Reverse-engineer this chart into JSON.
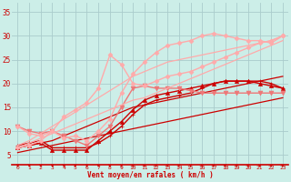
{
  "bg_color": "#cceee8",
  "grid_color": "#aacccc",
  "line_color_dark": "#cc0000",
  "xlabel": "Vent moyen/en rafales ( km/h )",
  "ylabel_ticks": [
    5,
    10,
    15,
    20,
    25,
    30,
    35
  ],
  "xlim": [
    -0.5,
    23.5
  ],
  "ylim": [
    3,
    37
  ],
  "series": [
    {
      "x": [
        0,
        1,
        2,
        3,
        4,
        5,
        6,
        7,
        8,
        9,
        10,
        11,
        12,
        13,
        14,
        15,
        16,
        17,
        18,
        19,
        20,
        21,
        22,
        23
      ],
      "y": [
        5.5,
        6.0,
        6.5,
        7.0,
        7.5,
        8.0,
        8.5,
        9.0,
        9.5,
        10.0,
        10.5,
        11.0,
        11.5,
        12.0,
        12.5,
        13.0,
        13.5,
        14.0,
        14.5,
        15.0,
        15.5,
        16.0,
        16.5,
        17.0
      ],
      "color": "#cc0000",
      "lw": 0.9,
      "marker": null,
      "ms": 0
    },
    {
      "x": [
        0,
        1,
        2,
        3,
        4,
        5,
        6,
        7,
        8,
        9,
        10,
        11,
        12,
        13,
        14,
        15,
        16,
        17,
        18,
        19,
        20,
        21,
        22,
        23
      ],
      "y": [
        7.0,
        7.5,
        8.0,
        6.5,
        6.5,
        6.5,
        6.5,
        7.5,
        9.0,
        11.0,
        13.5,
        15.5,
        16.5,
        17.0,
        17.5,
        18.0,
        19.0,
        20.0,
        20.5,
        20.5,
        20.5,
        20.5,
        20.0,
        19.0
      ],
      "color": "#cc0000",
      "lw": 1.0,
      "marker": "+",
      "ms": 3.5
    },
    {
      "x": [
        0,
        1,
        2,
        3,
        4,
        5,
        6,
        7,
        8,
        9,
        10,
        11,
        12,
        13,
        14,
        15,
        16,
        17,
        18,
        19,
        20,
        21,
        22,
        23
      ],
      "y": [
        6.5,
        7.0,
        7.5,
        6.0,
        6.0,
        6.0,
        6.0,
        8.0,
        10.0,
        12.0,
        14.5,
        16.5,
        17.5,
        18.0,
        18.5,
        19.0,
        19.5,
        20.0,
        20.5,
        20.5,
        20.5,
        20.0,
        19.5,
        19.0
      ],
      "color": "#cc0000",
      "lw": 1.0,
      "marker": "^",
      "ms": 3
    },
    {
      "x": [
        0,
        1,
        2,
        3,
        4,
        5,
        6,
        7,
        8,
        9,
        10,
        11,
        12,
        13,
        14,
        15,
        16,
        17,
        18,
        19,
        20,
        21,
        22,
        23
      ],
      "y": [
        6.5,
        7.0,
        7.5,
        8.0,
        9.0,
        10.0,
        11.0,
        12.0,
        13.0,
        14.0,
        15.0,
        15.5,
        16.0,
        16.5,
        17.0,
        17.5,
        18.0,
        18.5,
        19.0,
        19.5,
        20.0,
        20.5,
        21.0,
        21.5
      ],
      "color": "#cc0000",
      "lw": 0.9,
      "marker": null,
      "ms": 0
    },
    {
      "x": [
        0,
        1,
        2,
        3,
        4,
        5,
        6,
        7,
        8,
        9,
        10,
        11,
        12,
        13,
        14,
        15,
        16,
        17,
        18,
        19,
        20,
        21,
        22,
        23
      ],
      "y": [
        11.0,
        10.0,
        9.5,
        10.0,
        9.0,
        8.0,
        7.0,
        9.0,
        11.0,
        15.0,
        19.0,
        19.5,
        19.0,
        19.0,
        19.0,
        18.5,
        18.0,
        18.0,
        18.0,
        18.0,
        18.0,
        18.0,
        18.0,
        18.0
      ],
      "color": "#ee7777",
      "lw": 1.0,
      "marker": "v",
      "ms": 3.5
    },
    {
      "x": [
        0,
        1,
        2,
        3,
        4,
        5,
        6,
        7,
        8,
        9,
        10,
        11,
        12,
        13,
        14,
        15,
        16,
        17,
        18,
        19,
        20,
        21,
        22,
        23
      ],
      "y": [
        11.0,
        9.5,
        9.0,
        10.0,
        8.5,
        9.0,
        8.0,
        10.0,
        12.5,
        18.0,
        22.0,
        24.5,
        26.5,
        28.0,
        28.5,
        29.0,
        30.0,
        30.5,
        30.0,
        29.5,
        29.0,
        29.0,
        28.5,
        30.0
      ],
      "color": "#ffaaaa",
      "lw": 1.0,
      "marker": "D",
      "ms": 2.5
    },
    {
      "x": [
        0,
        1,
        2,
        3,
        4,
        5,
        6,
        7,
        8,
        9,
        10,
        11,
        12,
        13,
        14,
        15,
        16,
        17,
        18,
        19,
        20,
        21,
        22,
        23
      ],
      "y": [
        6.5,
        7.0,
        8.0,
        10.0,
        13.0,
        14.5,
        16.0,
        19.0,
        26.0,
        24.0,
        20.0,
        19.5,
        20.5,
        21.5,
        22.0,
        22.5,
        23.5,
        24.5,
        25.5,
        26.5,
        27.5,
        28.5,
        29.0,
        30.0
      ],
      "color": "#ffaaaa",
      "lw": 1.0,
      "marker": "D",
      "ms": 2.5
    },
    {
      "x": [
        0,
        1,
        2,
        3,
        4,
        5,
        6,
        7,
        8,
        9,
        10,
        11,
        12,
        13,
        14,
        15,
        16,
        17,
        18,
        19,
        20,
        21,
        22,
        23
      ],
      "y": [
        6.5,
        7.5,
        8.5,
        9.5,
        10.5,
        11.5,
        12.5,
        13.5,
        14.5,
        15.5,
        16.5,
        17.0,
        18.0,
        19.0,
        20.0,
        21.0,
        22.0,
        23.0,
        24.0,
        25.0,
        26.0,
        27.0,
        28.0,
        29.0
      ],
      "color": "#ffaaaa",
      "lw": 0.9,
      "marker": null,
      "ms": 0
    },
    {
      "x": [
        0,
        1,
        2,
        3,
        4,
        5,
        6,
        7,
        8,
        9,
        10,
        11,
        12,
        13,
        14,
        15,
        16,
        17,
        18,
        19,
        20,
        21,
        22,
        23
      ],
      "y": [
        7.0,
        8.0,
        9.5,
        11.0,
        12.5,
        14.0,
        15.5,
        17.0,
        18.5,
        20.0,
        21.5,
        22.5,
        23.5,
        24.5,
        25.0,
        25.5,
        26.0,
        26.5,
        27.0,
        27.5,
        28.0,
        28.5,
        29.0,
        30.0
      ],
      "color": "#ffaaaa",
      "lw": 0.9,
      "marker": null,
      "ms": 0
    }
  ],
  "wind_arrows": {
    "angles_deg": [
      315,
      315,
      305,
      285,
      270,
      270,
      270,
      270,
      270,
      270,
      270,
      270,
      270,
      270,
      270,
      270,
      270,
      270,
      270,
      270,
      270,
      270,
      270,
      270
    ]
  }
}
